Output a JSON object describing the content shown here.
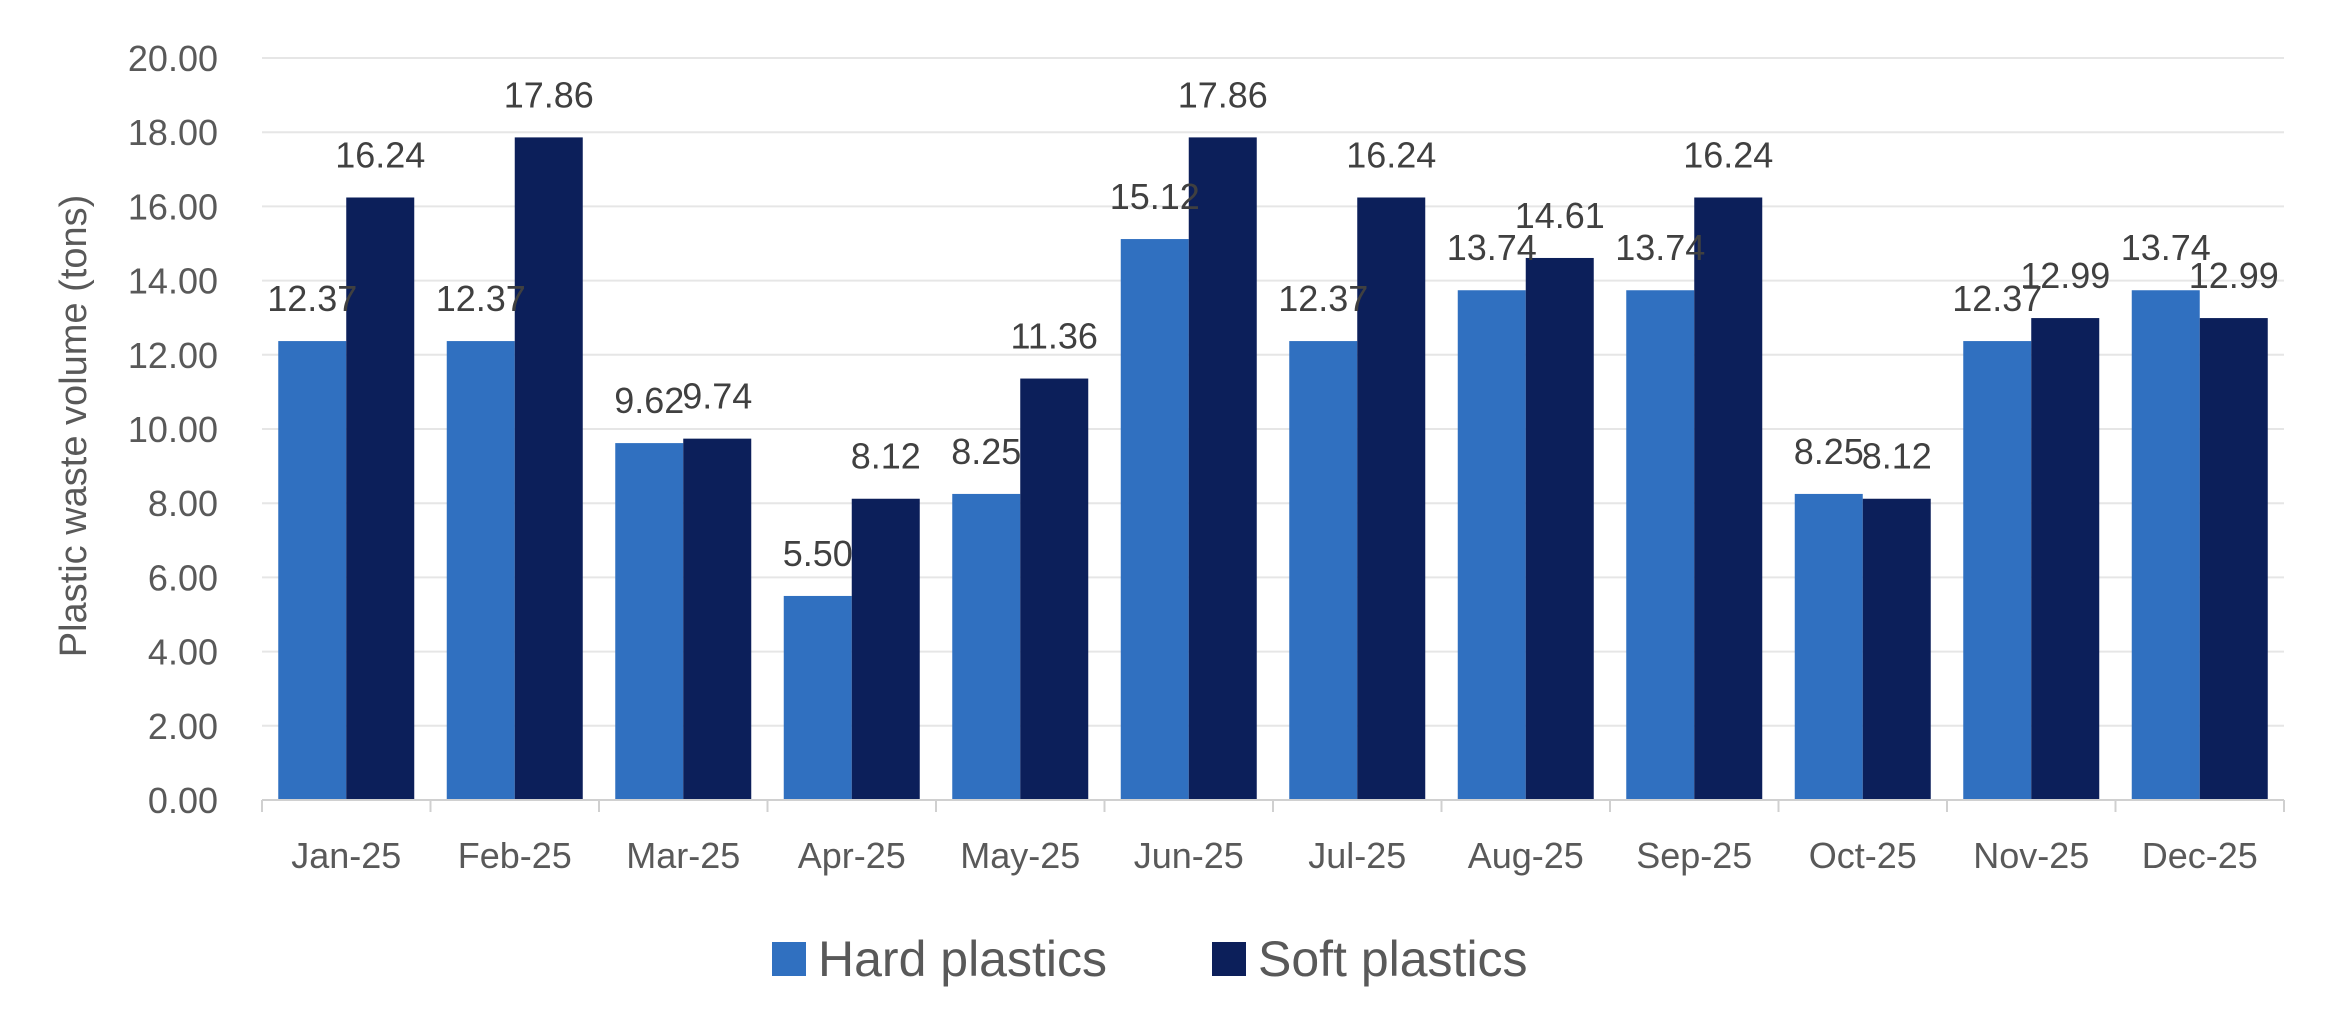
{
  "chart_data": {
    "type": "bar",
    "ylabel": "Plastic waste volume (tons)",
    "ylim": [
      0,
      20
    ],
    "y_ticks": [
      "0.00",
      "2.00",
      "4.00",
      "6.00",
      "8.00",
      "10.00",
      "12.00",
      "14.00",
      "16.00",
      "18.00",
      "20.00"
    ],
    "categories": [
      "Jan-25",
      "Feb-25",
      "Mar-25",
      "Apr-25",
      "May-25",
      "Jun-25",
      "Jul-25",
      "Aug-25",
      "Sep-25",
      "Oct-25",
      "Nov-25",
      "Dec-25"
    ],
    "series": [
      {
        "name": "Hard plastics",
        "color": "#3070C0",
        "values": [
          12.37,
          12.37,
          9.62,
          5.5,
          8.25,
          15.12,
          12.37,
          13.74,
          13.74,
          8.25,
          12.37,
          13.74
        ],
        "labels": [
          "12.37",
          "12.37",
          "9.62",
          "5.50",
          "8.25",
          "15.12",
          "12.37",
          "13.74",
          "13.74",
          "8.25",
          "12.37",
          "13.74"
        ]
      },
      {
        "name": "Soft plastics",
        "color": "#0C1F5A",
        "values": [
          16.24,
          17.86,
          9.74,
          8.12,
          11.36,
          17.86,
          16.24,
          14.61,
          16.24,
          8.12,
          12.99,
          12.99
        ],
        "labels": [
          "16.24",
          "17.86",
          "9.74",
          "8.12",
          "11.36",
          "17.86",
          "16.24",
          "14.61",
          "16.24",
          "8.12",
          "12.99",
          "12.99"
        ]
      }
    ],
    "grid": true,
    "grid_color": "#E6E6E6",
    "legend_position": "bottom"
  }
}
